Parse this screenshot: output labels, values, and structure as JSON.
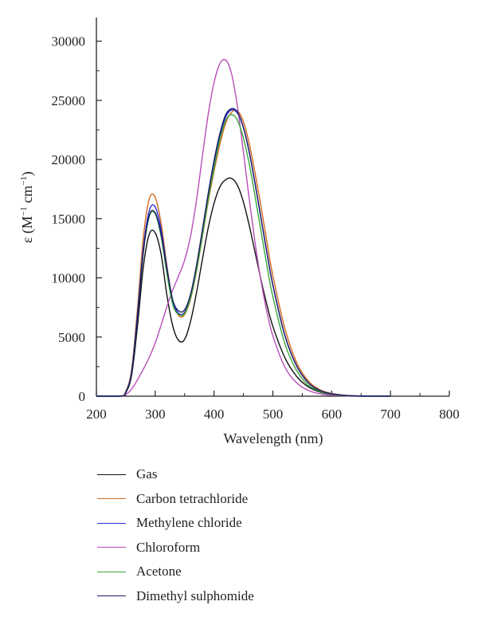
{
  "chart_data": {
    "type": "line",
    "xlabel": "Wavelength (nm)",
    "ylabel": "ε (M−1 cm−1)",
    "ylabel_parts": {
      "main": "ε (M",
      "sup1": "−1",
      "mid": " cm",
      "sup2": "−1",
      "end": ")"
    },
    "xlim": [
      200,
      800
    ],
    "ylim": [
      0,
      32000
    ],
    "x_ticks": [
      "200",
      "300",
      "400",
      "500",
      "600",
      "700",
      "800"
    ],
    "y_ticks": [
      "0",
      "5000",
      "10000",
      "15000",
      "20000",
      "25000",
      "30000"
    ],
    "grid": false,
    "legend_position": "below",
    "series": [
      {
        "name": "Gas",
        "color": "#111111",
        "x": [
          200,
          240,
          250,
          260,
          270,
          280,
          290,
          300,
          310,
          320,
          330,
          340,
          350,
          360,
          370,
          380,
          390,
          400,
          410,
          420,
          430,
          440,
          450,
          460,
          470,
          480,
          490,
          500,
          520,
          540,
          560,
          580,
          600,
          620,
          640,
          660,
          700
        ],
        "y": [
          0,
          0,
          300,
          1800,
          6000,
          11000,
          13700,
          13800,
          12000,
          8500,
          5900,
          4700,
          4800,
          6300,
          8700,
          11500,
          14200,
          16300,
          17700,
          18300,
          18400,
          17800,
          16400,
          14400,
          12100,
          9800,
          7700,
          5900,
          3300,
          1700,
          800,
          350,
          150,
          60,
          20,
          5,
          0
        ]
      },
      {
        "name": "Carbon tetrachloride",
        "color": "#d2691e",
        "x": [
          200,
          240,
          250,
          260,
          270,
          280,
          290,
          300,
          310,
          320,
          330,
          340,
          350,
          360,
          370,
          380,
          390,
          400,
          410,
          420,
          430,
          440,
          450,
          460,
          470,
          480,
          490,
          500,
          520,
          540,
          560,
          580,
          600,
          620,
          640,
          660,
          700
        ],
        "y": [
          0,
          0,
          400,
          2300,
          7500,
          13500,
          16700,
          16800,
          14600,
          11000,
          8000,
          6800,
          6900,
          8200,
          10500,
          13400,
          16400,
          19000,
          21300,
          23100,
          24000,
          24100,
          23200,
          21300,
          18800,
          16000,
          13000,
          10200,
          5800,
          2900,
          1300,
          550,
          230,
          90,
          30,
          10,
          0
        ]
      },
      {
        "name": "Methylene chloride",
        "color": "#2b2fd8",
        "x": [
          200,
          240,
          250,
          260,
          270,
          280,
          290,
          300,
          310,
          320,
          330,
          340,
          350,
          360,
          370,
          380,
          390,
          400,
          410,
          420,
          430,
          440,
          450,
          460,
          470,
          480,
          490,
          500,
          520,
          540,
          560,
          580,
          600,
          620,
          640,
          660,
          700
        ],
        "y": [
          0,
          0,
          350,
          2100,
          7000,
          12600,
          15700,
          16000,
          14100,
          10800,
          8000,
          7000,
          7100,
          8400,
          10800,
          13800,
          16900,
          19700,
          22000,
          23600,
          24200,
          23900,
          22700,
          20600,
          17900,
          15000,
          12100,
          9400,
          5200,
          2600,
          1150,
          480,
          200,
          80,
          25,
          8,
          0
        ]
      },
      {
        "name": "Chloroform",
        "color": "#b84db8",
        "x": [
          200,
          240,
          250,
          260,
          270,
          280,
          290,
          300,
          310,
          320,
          330,
          340,
          350,
          360,
          370,
          380,
          390,
          400,
          410,
          420,
          430,
          440,
          450,
          460,
          470,
          480,
          490,
          500,
          520,
          540,
          560,
          580,
          600,
          620,
          640,
          660,
          700
        ],
        "y": [
          0,
          0,
          150,
          600,
          1400,
          2300,
          3300,
          4500,
          6000,
          7600,
          9000,
          10200,
          11500,
          13500,
          16500,
          20200,
          23800,
          26500,
          28100,
          28400,
          27200,
          24400,
          20600,
          16600,
          12900,
          9700,
          7100,
          5100,
          2500,
          1150,
          500,
          200,
          80,
          30,
          10,
          3,
          0
        ]
      },
      {
        "name": "Acetone",
        "color": "#3aa83a",
        "x": [
          200,
          240,
          250,
          260,
          270,
          280,
          290,
          300,
          310,
          320,
          330,
          340,
          350,
          360,
          370,
          380,
          390,
          400,
          410,
          420,
          430,
          440,
          450,
          460,
          470,
          480,
          490,
          500,
          520,
          540,
          560,
          580,
          600,
          620,
          640,
          660,
          700
        ],
        "y": [
          0,
          0,
          330,
          2000,
          6700,
          12200,
          15200,
          15400,
          13500,
          10300,
          7700,
          6900,
          7000,
          8300,
          10600,
          13500,
          16600,
          19300,
          21700,
          23300,
          23800,
          23300,
          21800,
          19600,
          16800,
          13900,
          11000,
          8400,
          4500,
          2200,
          950,
          400,
          160,
          60,
          20,
          6,
          0
        ]
      },
      {
        "name": "Dimethyl sulphomide",
        "color": "#1a1a66",
        "x": [
          200,
          240,
          250,
          260,
          270,
          280,
          290,
          300,
          310,
          320,
          330,
          340,
          350,
          360,
          370,
          380,
          390,
          400,
          410,
          420,
          430,
          440,
          450,
          460,
          470,
          480,
          490,
          500,
          520,
          540,
          560,
          580,
          600,
          620,
          640,
          660,
          700
        ],
        "y": [
          0,
          0,
          330,
          2000,
          6700,
          12300,
          15300,
          15500,
          13700,
          10700,
          8100,
          7200,
          7300,
          8600,
          11000,
          14000,
          17100,
          19900,
          22200,
          23800,
          24300,
          24000,
          22700,
          20600,
          17900,
          15000,
          12100,
          9400,
          5200,
          2600,
          1150,
          480,
          200,
          80,
          25,
          8,
          0
        ]
      }
    ]
  }
}
